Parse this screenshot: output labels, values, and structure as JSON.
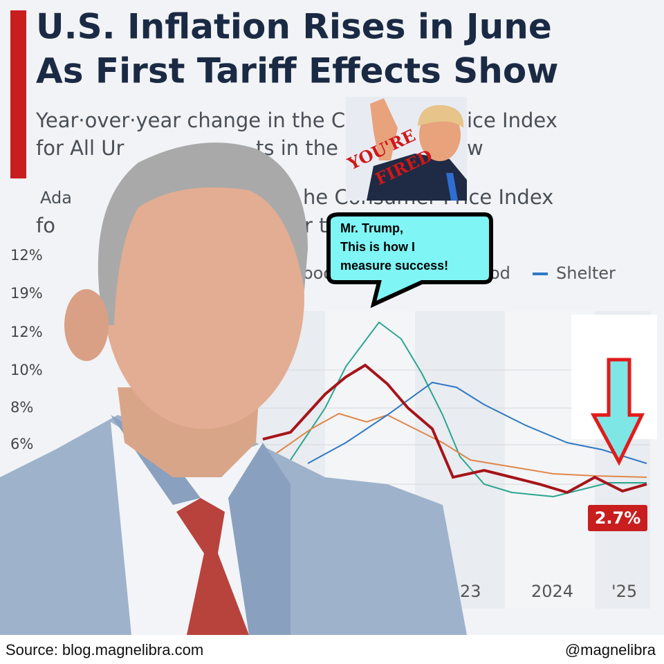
{
  "header": {
    "title": [
      "U.S. Inflation Rises in June",
      "As First Tariff Effects Show"
    ],
    "subtitle": [
      "Year·over·year change in the C",
      "ice Index",
      "for All Ur",
      "ts in the",
      "w"
    ],
    "subtitle2": [
      "Ada",
      "he Consumer Price Index",
      "fo",
      "r t"
    ]
  },
  "chart": {
    "y_labels": [
      "12%",
      "19%",
      "12%",
      "10%",
      "8%",
      "6%"
    ],
    "legend": [
      "ood",
      "od",
      "Shelter"
    ],
    "x_labels": [
      "23",
      "2024",
      "'25"
    ],
    "callout": "2.7%"
  },
  "inset": {
    "stamp": [
      "YOU'RE",
      "FIRED"
    ]
  },
  "speech_bubble": [
    "Mr. Trump,",
    "This is how I",
    "measure success!"
  ],
  "footer": {
    "source": "Source: blog.magnelibra.com",
    "handle": "@magnelibra"
  }
}
